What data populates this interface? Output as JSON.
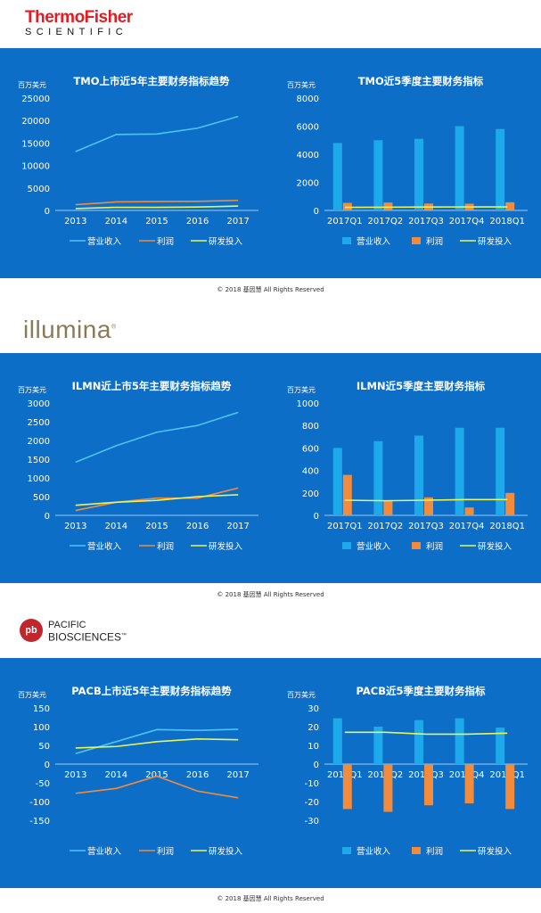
{
  "companies": [
    {
      "logo": {
        "line1": "ThermoFisher",
        "line2": "SCIENTIFIC"
      },
      "copyright": "© 2018 基因慧 All Rights Reserved",
      "charts": [
        {
          "type": "line",
          "title": "TMO上市近5年主要财务指标趋势",
          "unit": "百万美元",
          "categories": [
            "2013",
            "2014",
            "2015",
            "2016",
            "2017"
          ],
          "yticks": [
            0,
            5000,
            10000,
            15000,
            20000,
            25000
          ],
          "ylim": [
            0,
            25000
          ],
          "series": [
            {
              "name": "营业收入",
              "color": "#4fc3f7",
              "values": [
                13100,
                16900,
                17000,
                18300,
                20900
              ]
            },
            {
              "name": "利润",
              "color": "#f28c3c",
              "values": [
                1270,
                1890,
                1980,
                2020,
                2230
              ]
            },
            {
              "name": "研发投入",
              "color": "#e8f55a",
              "values": [
                410,
                690,
                690,
                750,
                970
              ]
            }
          ]
        },
        {
          "type": "bar",
          "title": "TMO近5季度主要财务指标",
          "unit": "百万美元",
          "categories": [
            "2017Q1",
            "2017Q2",
            "2017Q3",
            "2017Q4",
            "2018Q1"
          ],
          "yticks": [
            0,
            2000,
            4000,
            6000,
            8000
          ],
          "ylim": [
            0,
            8000
          ],
          "series": [
            {
              "name": "营业收入",
              "color": "#1ea9ea",
              "kind": "bar",
              "values": [
                4800,
                5000,
                5100,
                6000,
                5800
              ]
            },
            {
              "name": "利润",
              "color": "#f28c3c",
              "kind": "bar",
              "values": [
                540,
                560,
                490,
                480,
                580
              ]
            },
            {
              "name": "研发投入",
              "color": "#e8f55a",
              "kind": "line",
              "values": [
                220,
                230,
                240,
                250,
                250
              ]
            }
          ]
        }
      ]
    },
    {
      "logo": {
        "line1": "illumina",
        "mark": "®"
      },
      "copyright": "© 2018 基因慧 All Rights Reserved",
      "charts": [
        {
          "type": "line",
          "title": "ILMN近上市5年主要财务指标趋势",
          "unit": "百万美元",
          "categories": [
            "2013",
            "2014",
            "2015",
            "2016",
            "2017"
          ],
          "yticks": [
            0,
            500,
            1000,
            1500,
            2000,
            2500,
            3000
          ],
          "ylim": [
            0,
            3000
          ],
          "series": [
            {
              "name": "营业收入",
              "color": "#4fc3f7",
              "values": [
                1420,
                1860,
                2220,
                2400,
                2750
              ]
            },
            {
              "name": "利润",
              "color": "#f28c3c",
              "values": [
                130,
                350,
                460,
                460,
                730
              ]
            },
            {
              "name": "研发投入",
              "color": "#e8f55a",
              "values": [
                270,
                350,
                400,
                500,
                550
              ]
            }
          ]
        },
        {
          "type": "bar",
          "title": "ILMN近5季度主要财务指标",
          "unit": "百万美元",
          "categories": [
            "2017Q1",
            "2017Q2",
            "2017Q3",
            "2017Q4",
            "2018Q1"
          ],
          "yticks": [
            0,
            200,
            400,
            600,
            800,
            1000
          ],
          "ylim": [
            0,
            1000
          ],
          "series": [
            {
              "name": "营业收入",
              "color": "#1ea9ea",
              "kind": "bar",
              "values": [
                600,
                660,
                710,
                780,
                780
              ]
            },
            {
              "name": "利润",
              "color": "#f28c3c",
              "kind": "bar",
              "values": [
                360,
                130,
                160,
                70,
                200
              ]
            },
            {
              "name": "研发投入",
              "color": "#e8f55a",
              "kind": "line",
              "values": [
                135,
                130,
                135,
                140,
                140
              ]
            }
          ]
        }
      ]
    },
    {
      "logo": {
        "mark": "pb",
        "line1": "PACIFIC",
        "line2": "BIOSCIENCES",
        "tm": "™"
      },
      "copyright": "© 2018 基因慧 All Rights Reserved",
      "charts": [
        {
          "type": "line",
          "title": "PACB上市近5年主要财务指标趋势",
          "unit": "百万美元",
          "categories": [
            "2013",
            "2014",
            "2015",
            "2016",
            "2017"
          ],
          "yticks": [
            -150,
            -100,
            -50,
            0,
            50,
            100,
            150
          ],
          "ylim": [
            -150,
            150
          ],
          "series": [
            {
              "name": "营业收入",
              "color": "#4fc3f7",
              "values": [
                28,
                60,
                92,
                90,
                93
              ]
            },
            {
              "name": "利润",
              "color": "#f28c3c",
              "values": [
                -78,
                -65,
                -32,
                -72,
                -90
              ]
            },
            {
              "name": "研发投入",
              "color": "#e8f55a",
              "values": [
                43,
                47,
                60,
                67,
                65
              ]
            }
          ]
        },
        {
          "type": "bar",
          "title": "PACB近5季度主要财务指标",
          "unit": "百万美元",
          "categories": [
            "2017Q1",
            "2017Q2",
            "2017Q3",
            "2017Q4",
            "2018Q1"
          ],
          "yticks": [
            -30,
            -20,
            -10,
            0,
            10,
            20,
            30
          ],
          "ylim": [
            -30,
            30
          ],
          "series": [
            {
              "name": "营业收入",
              "color": "#1ea9ea",
              "kind": "bar",
              "values": [
                24.5,
                20,
                23.5,
                24.5,
                19.5
              ]
            },
            {
              "name": "利润",
              "color": "#f28c3c",
              "kind": "bar",
              "values": [
                -24,
                -25.5,
                -22,
                -21,
                -24
              ]
            },
            {
              "name": "研发投入",
              "color": "#e8f55a",
              "kind": "line",
              "values": [
                17,
                17,
                16,
                16,
                16.5
              ]
            }
          ]
        }
      ]
    }
  ]
}
